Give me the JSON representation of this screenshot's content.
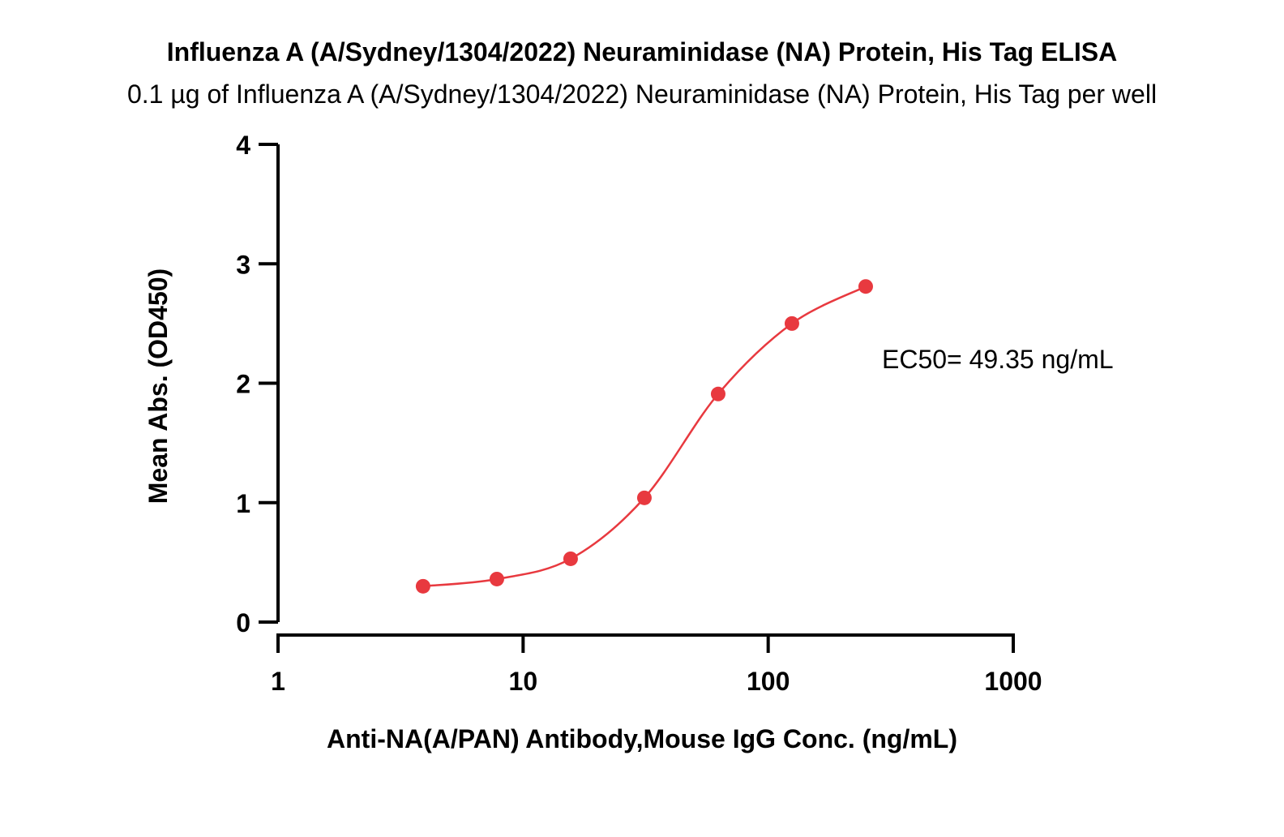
{
  "chart_data": {
    "type": "scatter",
    "title": "Influenza A (A/Sydney/1304/2022) Neuraminidase (NA) Protein, His Tag ELISA",
    "subtitle": "0.1 µg of Influenza A (A/Sydney/1304/2022) Neuraminidase (NA) Protein, His Tag per well",
    "xlabel": "Anti-NA(A/PAN) Antibody,Mouse IgG Conc. (ng/mL)",
    "ylabel": "Mean Abs. (OD450)",
    "xscale": "log",
    "xlim": [
      1,
      1000
    ],
    "ylim": [
      0,
      4
    ],
    "x_ticks": [
      1,
      10,
      100,
      1000
    ],
    "x_tick_labels": [
      "1",
      "10",
      "100",
      "1000"
    ],
    "y_ticks": [
      0,
      1,
      2,
      3,
      4
    ],
    "y_tick_labels": [
      "0",
      "1",
      "2",
      "3",
      "4"
    ],
    "grid": false,
    "series": [
      {
        "color": "#e8393f",
        "x": [
          3.906,
          7.813,
          15.625,
          31.25,
          62.5,
          125,
          250
        ],
        "y": [
          0.3,
          0.36,
          0.53,
          1.04,
          1.91,
          2.5,
          2.81
        ]
      }
    ],
    "annotation": "EC50= 49.35 ng/mL"
  }
}
